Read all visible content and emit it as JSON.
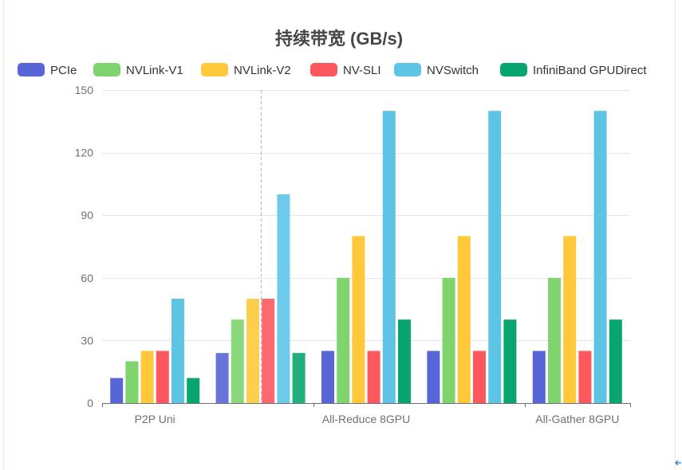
{
  "chart_data": {
    "type": "bar",
    "title": "持续带宽 (GB/s)",
    "categories": [
      "P2P Uni",
      "",
      "All-Reduce 8GPU",
      "",
      "All-Gather 8GPU"
    ],
    "ylim": [
      0,
      150
    ],
    "yticks": [
      0,
      30,
      60,
      90,
      120,
      150
    ],
    "grid": true,
    "legend_position": "top",
    "hovered_category_index": 1,
    "series": [
      {
        "name": "PCIe",
        "color": "#5865d6",
        "values": [
          12,
          24,
          25,
          25,
          25
        ]
      },
      {
        "name": "NVLink-V1",
        "color": "#7fd46e",
        "values": [
          20,
          40,
          60,
          60,
          60
        ]
      },
      {
        "name": "NVLink-V2",
        "color": "#ffc93b",
        "values": [
          25,
          50,
          80,
          80,
          80
        ]
      },
      {
        "name": "NV-SLI",
        "color": "#fd585e",
        "values": [
          25,
          50,
          25,
          25,
          25
        ]
      },
      {
        "name": "NVSwitch",
        "color": "#5ec4e6",
        "values": [
          50,
          100,
          140,
          140,
          140
        ]
      },
      {
        "name": "InfiniBand GPUDirect",
        "color": "#08a66e",
        "values": [
          12,
          24,
          40,
          40,
          40
        ]
      }
    ]
  },
  "colors": {
    "title": "#464646",
    "legend_text": "#333333",
    "axis_label": "#6e7079",
    "axis_line": "#6e7079",
    "grid": "#e0e6f1",
    "pointer_line": "#b5b5b5",
    "frame": "#f3e4d4"
  },
  "icons": {
    "corner_icon": "arrow-left-icon",
    "corner_icon_color": "#2a7ae2"
  }
}
